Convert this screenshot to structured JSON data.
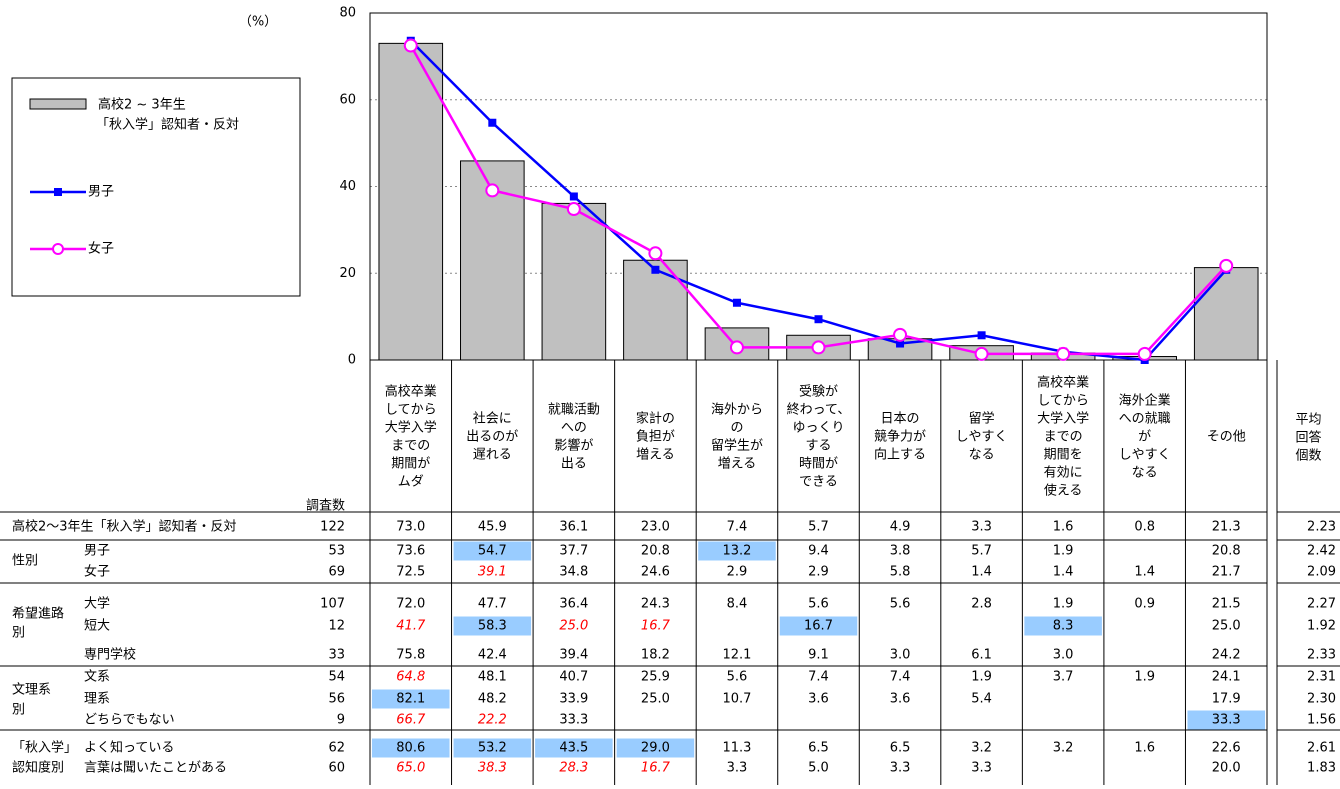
{
  "chart_data": {
    "type": "bar",
    "y_label": "（%）",
    "categories": [
      [
        "高校卒業",
        "してから",
        "大学入学",
        "までの",
        "期間が",
        "ムダ"
      ],
      [
        "社会に",
        "出るのが",
        "遅れる"
      ],
      [
        "就職活動",
        "への",
        "影響が",
        "出る"
      ],
      [
        "家計の",
        "負担が",
        "増える"
      ],
      [
        "海外から",
        "の",
        "留学生が",
        "増える"
      ],
      [
        "受験が",
        "終わって、",
        "ゆっくり",
        "する",
        "時間が",
        "できる"
      ],
      [
        "日本の",
        "競争力が",
        "向上する"
      ],
      [
        "留学",
        "しやすく",
        "なる"
      ],
      [
        "高校卒業",
        "してから",
        "大学入学",
        "までの",
        "期間を",
        "有効に",
        "使える"
      ],
      [
        "海外企業",
        "への就職",
        "が",
        "しやすく",
        "なる"
      ],
      [
        "その他"
      ]
    ],
    "series": [
      {
        "name": [
          "高校2 ~ 3年生",
          "「秋入学」認知者・反対"
        ],
        "type": "bar",
        "color": "#c0c0c0",
        "values": [
          73.0,
          45.9,
          36.1,
          23.0,
          7.4,
          5.7,
          4.9,
          3.3,
          1.6,
          0.8,
          21.3
        ]
      },
      {
        "name": "男子",
        "type": "line",
        "color": "#0000ff",
        "marker": "square",
        "values": [
          73.6,
          54.7,
          37.7,
          20.8,
          13.2,
          9.4,
          3.8,
          5.7,
          1.9,
          0,
          20.8
        ]
      },
      {
        "name": "女子",
        "type": "line",
        "color": "#ff00ff",
        "marker": "circle",
        "values": [
          72.5,
          39.1,
          34.8,
          24.6,
          2.9,
          2.9,
          5.8,
          1.4,
          1.4,
          1.4,
          21.7
        ]
      }
    ],
    "ylim": [
      0,
      80
    ],
    "yticks": [
      0,
      20,
      40,
      60,
      80
    ],
    "grid": true
  },
  "table": {
    "count_header": "調査数",
    "avg_header": [
      "平均",
      "回答",
      "個数"
    ],
    "highlight_color": "#99ccff",
    "low_color": "#ff0000",
    "total": {
      "label": "高校2～3年生「秋入学」認知者・反対",
      "n": "122",
      "cells": [
        "73.0",
        "45.9",
        "36.1",
        "23.0",
        "7.4",
        "5.7",
        "4.9",
        "3.3",
        "1.6",
        "0.8",
        "21.3"
      ],
      "avg": "2.23",
      "high": [],
      "low": []
    },
    "groups": [
      {
        "label": [
          "性別"
        ],
        "rows": [
          {
            "label": "男子",
            "n": "53",
            "cells": [
              "73.6",
              "54.7",
              "37.7",
              "20.8",
              "13.2",
              "9.4",
              "3.8",
              "5.7",
              "1.9",
              null,
              "20.8"
            ],
            "avg": "2.42",
            "high": [
              1,
              4
            ],
            "low": []
          },
          {
            "label": "女子",
            "n": "69",
            "cells": [
              "72.5",
              "39.1",
              "34.8",
              "24.6",
              "2.9",
              "2.9",
              "5.8",
              "1.4",
              "1.4",
              "1.4",
              "21.7"
            ],
            "avg": "2.09",
            "high": [],
            "low": [
              1
            ]
          }
        ]
      },
      {
        "label": [
          "希望進路",
          "別"
        ],
        "rows": [
          {
            "label": "大学",
            "n": "107",
            "cells": [
              "72.0",
              "47.7",
              "36.4",
              "24.3",
              "8.4",
              "5.6",
              "5.6",
              "2.8",
              "1.9",
              "0.9",
              "21.5"
            ],
            "avg": "2.27",
            "high": [],
            "low": []
          },
          {
            "label": "短大",
            "n": "12",
            "cells": [
              "41.7",
              "58.3",
              "25.0",
              "16.7",
              null,
              "16.7",
              null,
              null,
              "8.3",
              null,
              "25.0"
            ],
            "avg": "1.92",
            "high": [
              1,
              5,
              8
            ],
            "low": [
              0,
              2,
              3
            ]
          },
          {
            "label": "専門学校",
            "n": "33",
            "cells": [
              "75.8",
              "42.4",
              "39.4",
              "18.2",
              "12.1",
              "9.1",
              "3.0",
              "6.1",
              "3.0",
              null,
              "24.2"
            ],
            "avg": "2.33",
            "high": [],
            "low": []
          }
        ]
      },
      {
        "label": [
          "文理系",
          "別"
        ],
        "rows": [
          {
            "label": "文系",
            "n": "54",
            "cells": [
              "64.8",
              "48.1",
              "40.7",
              "25.9",
              "5.6",
              "7.4",
              "7.4",
              "1.9",
              "3.7",
              "1.9",
              "24.1"
            ],
            "avg": "2.31",
            "high": [],
            "low": [
              0
            ]
          },
          {
            "label": "理系",
            "n": "56",
            "cells": [
              "82.1",
              "48.2",
              "33.9",
              "25.0",
              "10.7",
              "3.6",
              "3.6",
              "5.4",
              null,
              null,
              "17.9"
            ],
            "avg": "2.30",
            "high": [
              0
            ],
            "low": []
          },
          {
            "label": "どちらでもない",
            "n": "9",
            "cells": [
              "66.7",
              "22.2",
              "33.3",
              null,
              null,
              null,
              null,
              null,
              null,
              null,
              "33.3"
            ],
            "avg": "1.56",
            "high": [
              10
            ],
            "low": [
              0,
              1
            ]
          }
        ]
      },
      {
        "label": [
          "「秋入学」",
          "認知度別"
        ],
        "rows": [
          {
            "label": "よく知っている",
            "n": "62",
            "cells": [
              "80.6",
              "53.2",
              "43.5",
              "29.0",
              "11.3",
              "6.5",
              "6.5",
              "3.2",
              "3.2",
              "1.6",
              "22.6"
            ],
            "avg": "2.61",
            "high": [
              0,
              1,
              2,
              3
            ],
            "low": []
          },
          {
            "label": "言葉は聞いたことがある",
            "n": "60",
            "cells": [
              "65.0",
              "38.3",
              "28.3",
              "16.7",
              "3.3",
              "5.0",
              "3.3",
              "3.3",
              null,
              null,
              "20.0"
            ],
            "avg": "1.83",
            "high": [],
            "low": [
              0,
              1,
              2,
              3
            ]
          }
        ]
      }
    ]
  }
}
